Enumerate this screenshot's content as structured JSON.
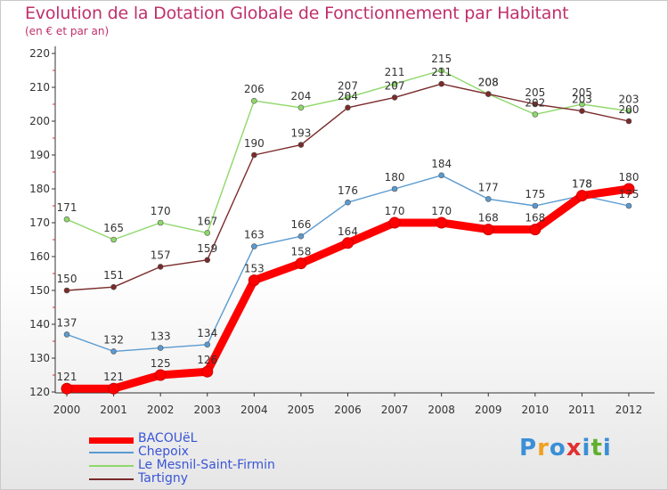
{
  "header": {
    "title": "Evolution de la Dotation Globale de Fonctionnement par Habitant",
    "subtitle": "(en € et par an)"
  },
  "legend": [
    {
      "label": "BACOUëL"
    },
    {
      "label": "Chepoix"
    },
    {
      "label": "Le Mesnil-Saint-Firmin"
    },
    {
      "label": "Tartigny"
    }
  ],
  "logo": {
    "letters": [
      "P",
      "r",
      "o",
      "x",
      "i",
      "t",
      "i"
    ],
    "colors": [
      "#3a8fd6",
      "#f0a020",
      "#3a8fd6",
      "#e03030",
      "#3a8fd6",
      "#60b030",
      "#3a8fd6"
    ]
  },
  "chart_data": {
    "type": "line",
    "title": "Evolution de la Dotation Globale de Fonctionnement par Habitant",
    "subtitle": "(en € et par an)",
    "xlabel": "",
    "ylabel": "",
    "x": [
      "2000",
      "2001",
      "2002",
      "2003",
      "2004",
      "2005",
      "2006",
      "2007",
      "2008",
      "2009",
      "2010",
      "2011",
      "2012"
    ],
    "ylim": [
      120,
      220
    ],
    "yticks": [
      120,
      130,
      140,
      150,
      160,
      170,
      180,
      190,
      200,
      210,
      220
    ],
    "grid": false,
    "legend_position": "bottom-left",
    "series": [
      {
        "name": "BACOUëL",
        "color": "#ff0000",
        "values": [
          121,
          121,
          125,
          126,
          153,
          158,
          164,
          170,
          170,
          168,
          168,
          178,
          180
        ]
      },
      {
        "name": "Chepoix",
        "color": "#5a9ad0",
        "values": [
          137,
          132,
          133,
          134,
          163,
          166,
          176,
          180,
          184,
          177,
          175,
          178,
          175
        ]
      },
      {
        "name": "Le Mesnil-Saint-Firmin",
        "color": "#8ed86a",
        "values": [
          171,
          165,
          170,
          167,
          206,
          204,
          207,
          211,
          215,
          208,
          202,
          205,
          203
        ]
      },
      {
        "name": "Tartigny",
        "color": "#7a2a2a",
        "values": [
          150,
          151,
          157,
          159,
          190,
          193,
          204,
          207,
          211,
          208,
          205,
          203,
          200
        ]
      }
    ]
  }
}
